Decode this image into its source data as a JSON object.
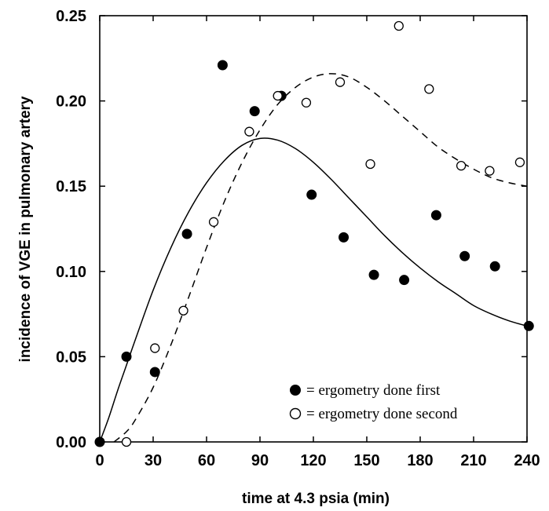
{
  "chart_data": {
    "type": "scatter",
    "title": "",
    "xlabel": "time at 4.3 psia (min)",
    "ylabel": "incidence of VGE in pulmonary artery",
    "xlim": [
      0,
      240
    ],
    "ylim": [
      0,
      0.25
    ],
    "x_ticks": [
      0,
      30,
      60,
      90,
      120,
      150,
      180,
      210,
      240
    ],
    "y_ticks": [
      "0.00",
      "0.05",
      "0.10",
      "0.15",
      "0.20",
      "0.25"
    ],
    "grid": false,
    "legend_placement": "bottom-right",
    "series": [
      {
        "name": "= ergometry done first",
        "marker": "filled-circle",
        "color": "#000000",
        "points": [
          [
            0,
            0.0
          ],
          [
            15,
            0.05
          ],
          [
            31,
            0.041
          ],
          [
            49,
            0.122
          ],
          [
            69,
            0.221
          ],
          [
            87,
            0.194
          ],
          [
            102,
            0.203
          ],
          [
            119,
            0.145
          ],
          [
            137,
            0.12
          ],
          [
            154,
            0.098
          ],
          [
            171,
            0.095
          ],
          [
            189,
            0.133
          ],
          [
            205,
            0.109
          ],
          [
            222,
            0.103
          ],
          [
            241,
            0.068
          ]
        ],
        "fit": {
          "style": "solid",
          "points": [
            [
              0,
              0.0
            ],
            [
              5,
              0.014
            ],
            [
              10,
              0.03
            ],
            [
              15,
              0.045
            ],
            [
              20,
              0.06
            ],
            [
              30,
              0.089
            ],
            [
              40,
              0.114
            ],
            [
              50,
              0.135
            ],
            [
              60,
              0.152
            ],
            [
              70,
              0.165
            ],
            [
              80,
              0.174
            ],
            [
              90,
              0.178
            ],
            [
              100,
              0.177
            ],
            [
              110,
              0.172
            ],
            [
              120,
              0.164
            ],
            [
              130,
              0.154
            ],
            [
              140,
              0.143
            ],
            [
              150,
              0.132
            ],
            [
              160,
              0.121
            ],
            [
              170,
              0.111
            ],
            [
              180,
              0.102
            ],
            [
              190,
              0.094
            ],
            [
              200,
              0.087
            ],
            [
              210,
              0.08
            ],
            [
              220,
              0.075
            ],
            [
              230,
              0.071
            ],
            [
              240,
              0.068
            ]
          ]
        }
      },
      {
        "name": "= ergometry done second",
        "marker": "open-circle",
        "color": "#000000",
        "points": [
          [
            15,
            0.0
          ],
          [
            31,
            0.055
          ],
          [
            47,
            0.077
          ],
          [
            64,
            0.129
          ],
          [
            84,
            0.182
          ],
          [
            100,
            0.203
          ],
          [
            116,
            0.199
          ],
          [
            135,
            0.211
          ],
          [
            152,
            0.163
          ],
          [
            168,
            0.244
          ],
          [
            185,
            0.207
          ],
          [
            203,
            0.162
          ],
          [
            219,
            0.159
          ],
          [
            236,
            0.164
          ]
        ],
        "fit": {
          "style": "dashed",
          "points": [
            [
              8,
              0.0
            ],
            [
              15,
              0.006
            ],
            [
              20,
              0.013
            ],
            [
              30,
              0.032
            ],
            [
              40,
              0.057
            ],
            [
              50,
              0.085
            ],
            [
              60,
              0.114
            ],
            [
              70,
              0.141
            ],
            [
              80,
              0.164
            ],
            [
              90,
              0.183
            ],
            [
              100,
              0.198
            ],
            [
              110,
              0.208
            ],
            [
              120,
              0.214
            ],
            [
              130,
              0.216
            ],
            [
              140,
              0.214
            ],
            [
              150,
              0.208
            ],
            [
              160,
              0.2
            ],
            [
              170,
              0.191
            ],
            [
              180,
              0.182
            ],
            [
              190,
              0.173
            ],
            [
              200,
              0.166
            ],
            [
              210,
              0.16
            ],
            [
              220,
              0.155
            ],
            [
              230,
              0.152
            ],
            [
              240,
              0.15
            ]
          ]
        }
      }
    ]
  }
}
